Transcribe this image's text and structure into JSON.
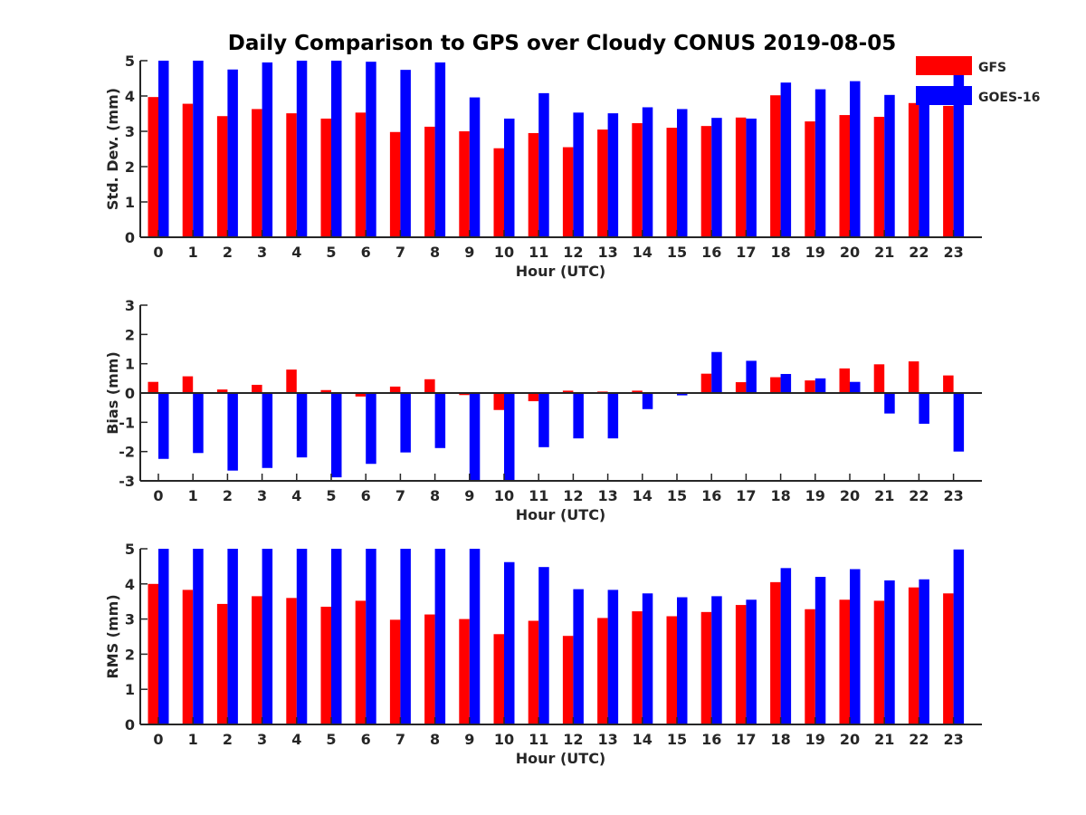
{
  "chart_data": {
    "title": "Daily Comparison to GPS over Cloudy CONUS 2019-08-05",
    "legend": {
      "placement": "top-right",
      "entries": [
        {
          "label": "GFS",
          "color": "#ff0000"
        },
        {
          "label": "GOES-16",
          "color": "#0000ff"
        }
      ]
    },
    "panels": [
      {
        "type": "bar",
        "ylabel": "Std. Dev. (mm)",
        "xlabel": "Hour (UTC)",
        "ylim": [
          0,
          5
        ],
        "yticks": [
          0,
          1,
          2,
          3,
          4,
          5
        ],
        "categories": [
          "0",
          "1",
          "2",
          "3",
          "4",
          "5",
          "6",
          "7",
          "8",
          "9",
          "10",
          "11",
          "12",
          "13",
          "14",
          "15",
          "16",
          "17",
          "18",
          "19",
          "20",
          "21",
          "22",
          "23"
        ],
        "series": [
          {
            "name": "GFS",
            "color": "#ff0000",
            "values": [
              3.97,
              3.78,
              3.43,
              3.63,
              3.51,
              3.36,
              3.53,
              2.98,
              3.13,
              3.0,
              2.52,
              2.95,
              2.55,
              3.05,
              3.23,
              3.1,
              3.15,
              3.39,
              4.02,
              3.28,
              3.46,
              3.41,
              3.8,
              3.72
            ]
          },
          {
            "name": "GOES-16",
            "color": "#0000ff",
            "values": [
              5.0,
              5.0,
              4.75,
              4.95,
              5.0,
              5.0,
              4.97,
              4.74,
              4.95,
              3.96,
              3.36,
              4.08,
              3.53,
              3.51,
              3.68,
              3.63,
              3.38,
              3.36,
              4.38,
              4.19,
              4.42,
              4.03,
              3.98,
              4.75
            ]
          }
        ]
      },
      {
        "type": "bar",
        "ylabel": "Bias (mm)",
        "xlabel": "Hour (UTC)",
        "ylim": [
          -3,
          3
        ],
        "yticks": [
          -3,
          -2,
          -1,
          0,
          1,
          2,
          3
        ],
        "categories": [
          "0",
          "1",
          "2",
          "3",
          "4",
          "5",
          "6",
          "7",
          "8",
          "9",
          "10",
          "11",
          "12",
          "13",
          "14",
          "15",
          "16",
          "17",
          "18",
          "19",
          "20",
          "21",
          "22",
          "23"
        ],
        "series": [
          {
            "name": "GFS",
            "color": "#ff0000",
            "values": [
              0.38,
              0.57,
              0.12,
              0.28,
              0.8,
              0.1,
              -0.12,
              0.22,
              0.47,
              -0.07,
              -0.58,
              -0.28,
              0.08,
              0.05,
              0.08,
              0.0,
              0.66,
              0.37,
              0.54,
              0.43,
              0.84,
              0.98,
              1.08,
              0.6
            ]
          },
          {
            "name": "GOES-16",
            "color": "#0000ff",
            "values": [
              -2.25,
              -2.05,
              -2.65,
              -2.56,
              -2.2,
              -2.88,
              -2.42,
              -2.03,
              -1.88,
              -3.0,
              -3.0,
              -1.85,
              -1.55,
              -1.55,
              -0.55,
              -0.08,
              1.4,
              1.1,
              0.65,
              0.5,
              0.38,
              -0.7,
              -1.05,
              -2.0
            ]
          }
        ]
      },
      {
        "type": "bar",
        "ylabel": "RMS (mm)",
        "xlabel": "Hour (UTC)",
        "ylim": [
          0,
          5
        ],
        "yticks": [
          0,
          1,
          2,
          3,
          4,
          5
        ],
        "categories": [
          "0",
          "1",
          "2",
          "3",
          "4",
          "5",
          "6",
          "7",
          "8",
          "9",
          "10",
          "11",
          "12",
          "13",
          "14",
          "15",
          "16",
          "17",
          "18",
          "19",
          "20",
          "21",
          "22",
          "23"
        ],
        "series": [
          {
            "name": "GFS",
            "color": "#ff0000",
            "values": [
              4.0,
              3.83,
              3.43,
              3.65,
              3.6,
              3.35,
              3.52,
              2.98,
              3.13,
              3.0,
              2.57,
              2.95,
              2.52,
              3.03,
              3.22,
              3.08,
              3.2,
              3.4,
              4.05,
              3.28,
              3.55,
              3.52,
              3.9,
              3.73
            ]
          },
          {
            "name": "GOES-16",
            "color": "#0000ff",
            "values": [
              5.0,
              5.0,
              5.0,
              5.0,
              5.0,
              5.0,
              5.0,
              5.0,
              5.0,
              5.0,
              4.62,
              4.48,
              3.85,
              3.83,
              3.73,
              3.62,
              3.65,
              3.55,
              4.45,
              4.2,
              4.42,
              4.1,
              4.13,
              4.98
            ]
          }
        ]
      }
    ]
  }
}
